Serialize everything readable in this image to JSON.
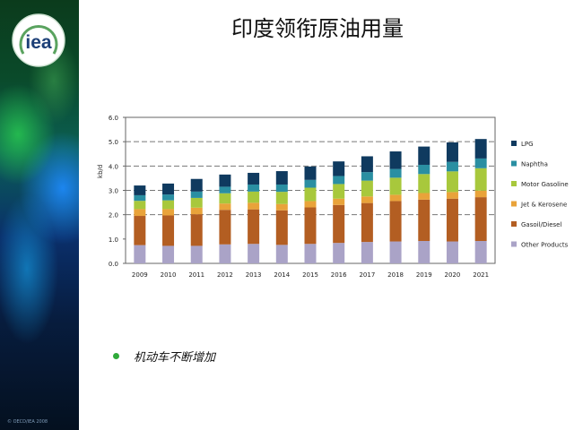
{
  "slide": {
    "title": "印度领衔原油用量",
    "bullet": "机动车不断增加",
    "copyright": "© OECD/IEA 2008"
  },
  "logo": {
    "text": "iea"
  },
  "colors": {
    "LPG": "#0f3a5f",
    "Naphtha": "#2a8fa2",
    "Motor Gasoline": "#a8c83c",
    "Jet & Kerosene": "#e9a33a",
    "Gasoil/Diesel": "#b35e22",
    "Other Products": "#aaa3c7"
  },
  "chart_data": {
    "type": "bar",
    "stacked": true,
    "ylabel": "kb/d",
    "ylim": [
      0,
      6
    ],
    "yticks": [
      "0.0",
      "1.0",
      "2.0",
      "3.0",
      "4.0",
      "5.0",
      "6.0"
    ],
    "dashed_gridlines": [
      2,
      3,
      4,
      5
    ],
    "legend_position": "right",
    "categories": [
      "2009",
      "2010",
      "2011",
      "2012",
      "2013",
      "2014",
      "2015",
      "2016",
      "2017",
      "2018",
      "2019",
      "2020",
      "2021"
    ],
    "series": [
      {
        "name": "Other Products",
        "values": [
          0.75,
          0.72,
          0.72,
          0.78,
          0.8,
          0.76,
          0.8,
          0.84,
          0.88,
          0.9,
          0.92,
          0.9,
          0.92
        ]
      },
      {
        "name": "Gasoil/Diesel",
        "values": [
          1.2,
          1.25,
          1.3,
          1.42,
          1.42,
          1.42,
          1.5,
          1.56,
          1.6,
          1.66,
          1.7,
          1.76,
          1.8
        ]
      },
      {
        "name": "Jet & Kerosene",
        "values": [
          0.28,
          0.26,
          0.27,
          0.26,
          0.27,
          0.26,
          0.26,
          0.26,
          0.27,
          0.26,
          0.27,
          0.27,
          0.27
        ]
      },
      {
        "name": "Motor Gasoline",
        "values": [
          0.34,
          0.36,
          0.4,
          0.42,
          0.46,
          0.5,
          0.55,
          0.6,
          0.65,
          0.7,
          0.78,
          0.85,
          0.92
        ]
      },
      {
        "name": "Naphtha",
        "values": [
          0.23,
          0.24,
          0.26,
          0.27,
          0.29,
          0.3,
          0.32,
          0.33,
          0.35,
          0.36,
          0.38,
          0.39,
          0.4
        ]
      },
      {
        "name": "LPG",
        "values": [
          0.4,
          0.45,
          0.52,
          0.5,
          0.48,
          0.55,
          0.55,
          0.6,
          0.65,
          0.72,
          0.75,
          0.8,
          0.8
        ]
      }
    ],
    "legend_order": [
      "LPG",
      "Naphtha",
      "Motor Gasoline",
      "Jet & Kerosene",
      "Gasoil/Diesel",
      "Other Products"
    ]
  }
}
